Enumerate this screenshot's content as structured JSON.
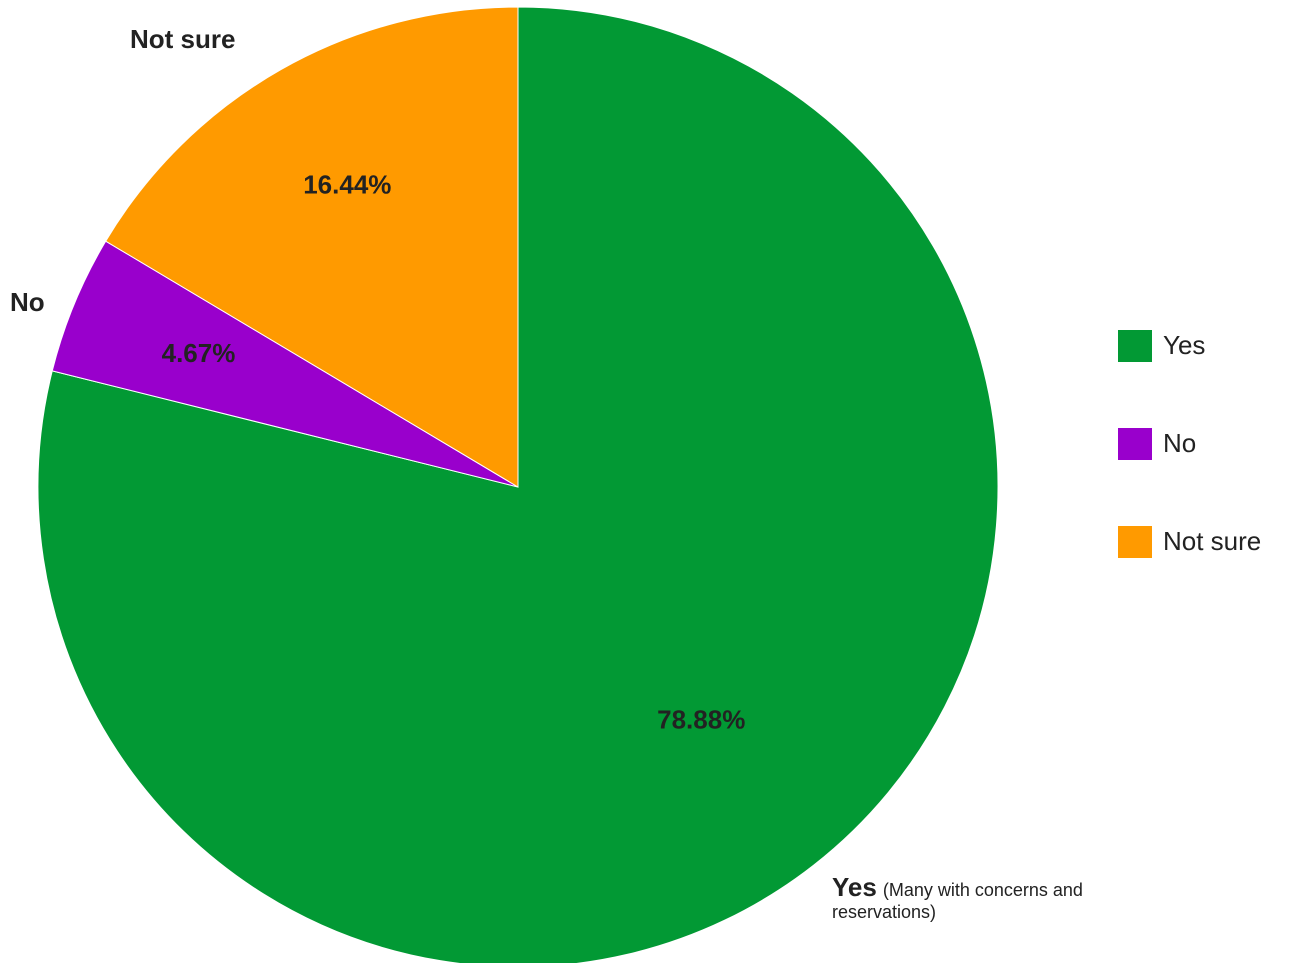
{
  "chart_data": {
    "type": "pie",
    "start_angle_deg": 0,
    "direction": "clockwise",
    "slices": [
      {
        "label": "Yes",
        "value": 78.88,
        "percent_label": "78.88%",
        "color": "#029934"
      },
      {
        "label": "No",
        "value": 4.67,
        "percent_label": "4.67%",
        "color": "#9900cc"
      },
      {
        "label": "Not sure",
        "value": 16.44,
        "percent_label": "16.44%",
        "color": "#ff9a00"
      }
    ],
    "outside_labels": [
      "No",
      "Not sure"
    ],
    "legend": {
      "placement": "right",
      "entries": [
        "Yes",
        "No",
        "Not sure"
      ]
    },
    "annotation": {
      "bold_text": "Yes",
      "text": "(Many with concerns and reservations)"
    }
  }
}
